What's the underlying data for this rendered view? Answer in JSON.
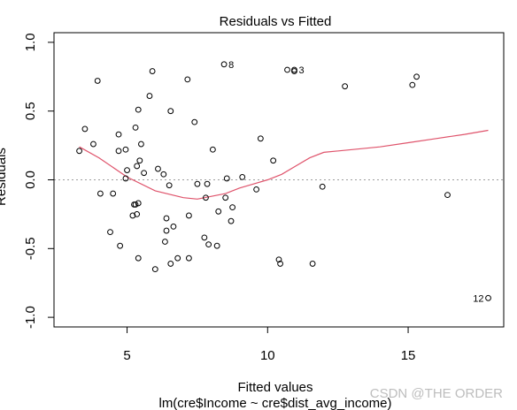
{
  "watermark": "CSDN @THE ORDER",
  "colors": {
    "points": "#000000",
    "smooth_line": "#df536b",
    "reference_line": "#9e9e9e",
    "frame": "#000000",
    "ylabel": "#00bfbf"
  },
  "chart_data": {
    "type": "scatter",
    "title": "Residuals vs Fitted",
    "xlabel": "Fitted values",
    "subtitle": "lm(cre$Income ~ cre$dist_avg_income)",
    "ylabel": "Residuals",
    "xlim": [
      2.4,
      18.4
    ],
    "ylim": [
      -1.07,
      1.07
    ],
    "xticks": [
      5,
      10,
      15
    ],
    "yticks": [
      -1.0,
      -0.5,
      0.0,
      0.5,
      1.0
    ],
    "xtick_labels": [
      "5",
      "10",
      "15"
    ],
    "ytick_labels": [
      "-1.0",
      "-0.5",
      "0.0",
      "0.5",
      "1.0"
    ],
    "reference_line_y": 0,
    "points": [
      {
        "x": 3.3,
        "y": 0.21
      },
      {
        "x": 3.5,
        "y": 0.37
      },
      {
        "x": 3.8,
        "y": 0.26
      },
      {
        "x": 3.95,
        "y": 0.72
      },
      {
        "x": 4.05,
        "y": -0.1
      },
      {
        "x": 4.4,
        "y": -0.38
      },
      {
        "x": 4.5,
        "y": -0.1
      },
      {
        "x": 4.7,
        "y": 0.33
      },
      {
        "x": 4.7,
        "y": 0.21
      },
      {
        "x": 4.75,
        "y": -0.48
      },
      {
        "x": 4.95,
        "y": 0.22
      },
      {
        "x": 4.95,
        "y": 0.01
      },
      {
        "x": 5.0,
        "y": 0.07
      },
      {
        "x": 5.2,
        "y": -0.26
      },
      {
        "x": 5.25,
        "y": -0.18
      },
      {
        "x": 5.3,
        "y": -0.18
      },
      {
        "x": 5.3,
        "y": 0.38
      },
      {
        "x": 5.35,
        "y": -0.25
      },
      {
        "x": 5.35,
        "y": 0.1
      },
      {
        "x": 5.4,
        "y": 0.51
      },
      {
        "x": 5.4,
        "y": -0.17
      },
      {
        "x": 5.4,
        "y": -0.57
      },
      {
        "x": 5.45,
        "y": 0.14
      },
      {
        "x": 5.5,
        "y": 0.26
      },
      {
        "x": 5.6,
        "y": 0.05
      },
      {
        "x": 5.8,
        "y": 0.61
      },
      {
        "x": 5.9,
        "y": 0.79
      },
      {
        "x": 6.0,
        "y": -0.65
      },
      {
        "x": 6.1,
        "y": 0.08
      },
      {
        "x": 6.3,
        "y": 0.04
      },
      {
        "x": 6.35,
        "y": -0.45
      },
      {
        "x": 6.4,
        "y": -0.28
      },
      {
        "x": 6.4,
        "y": -0.37
      },
      {
        "x": 6.5,
        "y": -0.04
      },
      {
        "x": 6.55,
        "y": 0.5
      },
      {
        "x": 6.55,
        "y": -0.61
      },
      {
        "x": 6.65,
        "y": -0.34
      },
      {
        "x": 6.8,
        "y": -0.57
      },
      {
        "x": 7.15,
        "y": 0.73
      },
      {
        "x": 7.2,
        "y": -0.26
      },
      {
        "x": 7.2,
        "y": -0.57
      },
      {
        "x": 7.4,
        "y": 0.42
      },
      {
        "x": 7.5,
        "y": -0.03
      },
      {
        "x": 7.75,
        "y": -0.42
      },
      {
        "x": 7.8,
        "y": -0.13
      },
      {
        "x": 7.85,
        "y": -0.03
      },
      {
        "x": 7.9,
        "y": -0.47
      },
      {
        "x": 8.05,
        "y": 0.22
      },
      {
        "x": 8.2,
        "y": -0.48
      },
      {
        "x": 8.25,
        "y": -0.23
      },
      {
        "x": 8.45,
        "y": 0.84
      },
      {
        "x": 8.5,
        "y": -0.13
      },
      {
        "x": 8.55,
        "y": 0.01
      },
      {
        "x": 8.7,
        "y": -0.3
      },
      {
        "x": 8.75,
        "y": -0.2
      },
      {
        "x": 9.1,
        "y": 0.02
      },
      {
        "x": 9.6,
        "y": -0.07
      },
      {
        "x": 9.75,
        "y": 0.3
      },
      {
        "x": 10.2,
        "y": 0.14
      },
      {
        "x": 10.4,
        "y": -0.58
      },
      {
        "x": 10.45,
        "y": -0.61
      },
      {
        "x": 10.7,
        "y": 0.8
      },
      {
        "x": 10.95,
        "y": 0.8
      },
      {
        "x": 10.95,
        "y": 0.79
      },
      {
        "x": 11.6,
        "y": -0.61
      },
      {
        "x": 11.95,
        "y": -0.05
      },
      {
        "x": 12.75,
        "y": 0.68
      },
      {
        "x": 15.15,
        "y": 0.69
      },
      {
        "x": 15.3,
        "y": 0.75
      },
      {
        "x": 16.4,
        "y": -0.11
      },
      {
        "x": 17.85,
        "y": -0.86
      }
    ],
    "labeled_points": [
      {
        "label": "8",
        "x": 8.45,
        "y": 0.84,
        "side": "right"
      },
      {
        "label": "3",
        "x": 10.95,
        "y": 0.8,
        "side": "right"
      },
      {
        "label": "12",
        "x": 17.85,
        "y": -0.86,
        "side": "left"
      }
    ],
    "smooth_line": {
      "x": [
        3.3,
        4.0,
        5.0,
        6.0,
        7.0,
        7.5,
        8.0,
        8.5,
        9.0,
        9.5,
        10.0,
        10.5,
        11.0,
        11.5,
        12.0,
        13.0,
        14.0,
        15.0,
        16.0,
        17.0,
        17.85
      ],
      "y": [
        0.24,
        0.16,
        0.02,
        -0.08,
        -0.13,
        -0.14,
        -0.12,
        -0.1,
        -0.06,
        -0.03,
        0.0,
        0.04,
        0.1,
        0.16,
        0.2,
        0.22,
        0.24,
        0.27,
        0.3,
        0.33,
        0.36
      ]
    }
  }
}
